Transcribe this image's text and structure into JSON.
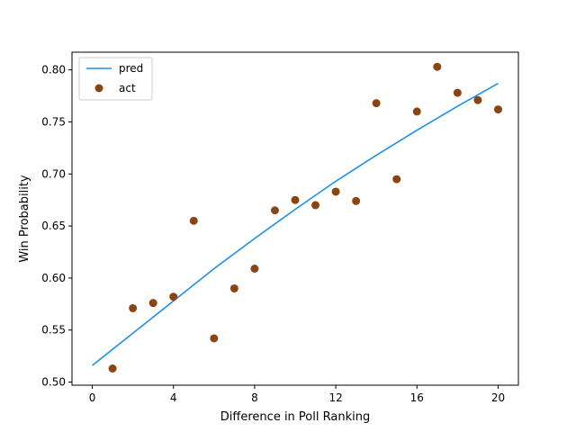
{
  "chart_data": {
    "type": "line+scatter",
    "title": "",
    "xlabel": "Difference in Poll Ranking",
    "ylabel": "Win Probability",
    "xlim": [
      -1,
      21
    ],
    "ylim": [
      0.497,
      0.817
    ],
    "xticks": [
      0,
      4,
      8,
      12,
      16,
      20
    ],
    "yticks": [
      0.5,
      0.55,
      0.6,
      0.65,
      0.7,
      0.75,
      0.8
    ],
    "ytick_labels": [
      "0.50",
      "0.55",
      "0.60",
      "0.65",
      "0.70",
      "0.75",
      "0.80"
    ],
    "grid": false,
    "legend": {
      "position": "top-left",
      "entries": [
        "pred",
        "act"
      ]
    },
    "series": [
      {
        "name": "pred",
        "kind": "line",
        "color": "#1f8fe8",
        "x": [
          0,
          2,
          4,
          6,
          8,
          10,
          12,
          14,
          16,
          18,
          20
        ],
        "y": [
          0.516,
          0.547,
          0.578,
          0.609,
          0.638,
          0.666,
          0.693,
          0.718,
          0.742,
          0.765,
          0.787
        ]
      },
      {
        "name": "act",
        "kind": "scatter",
        "color": "#8b4513",
        "x": [
          1,
          2,
          3,
          4,
          5,
          6,
          7,
          8,
          9,
          10,
          11,
          12,
          13,
          14,
          15,
          16,
          17,
          18,
          19,
          20
        ],
        "y": [
          0.513,
          0.571,
          0.576,
          0.582,
          0.655,
          0.542,
          0.59,
          0.609,
          0.665,
          0.675,
          0.67,
          0.683,
          0.674,
          0.768,
          0.695,
          0.76,
          0.803,
          0.778,
          0.771,
          0.762
        ]
      }
    ]
  }
}
